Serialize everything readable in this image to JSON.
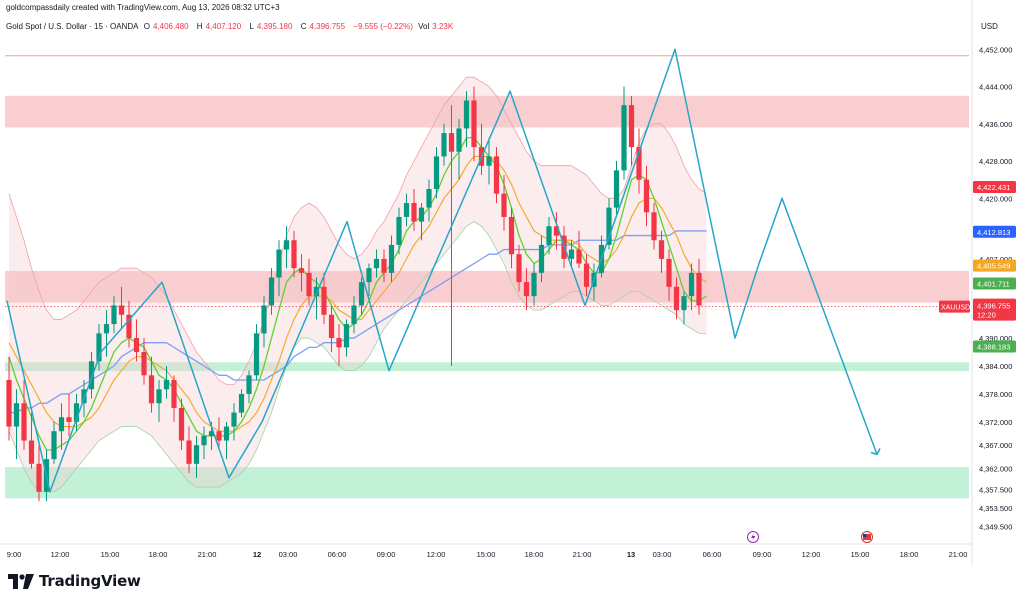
{
  "header": {
    "credit": "goldcompassdaily created with TradingView.com, Aug 13, 2026 08:32 UTC+3",
    "symbol": "Gold Spot / U.S. Dollar · 15 · OANDA",
    "o_label": "O",
    "o_value": "4,406.480",
    "h_label": "H",
    "h_value": "4,407.120",
    "l_label": "L",
    "l_value": "4,395.180",
    "c_label": "C",
    "c_value": "4,396.755",
    "change": "−9.555 (−0.22%)",
    "vol_label": "Vol",
    "vol_value": "3.23K"
  },
  "currency": "USD",
  "branding": {
    "logo_text": "TradingView"
  },
  "colors": {
    "up": "#089981",
    "down": "#f23645",
    "accent": "#2962ff",
    "projection": "#26a6c8",
    "ma_fast": "#5bd42c",
    "ma_mid": "#f5a623",
    "ma_slow": "#7e9ef2"
  },
  "chart_data": {
    "type": "candlestick",
    "y_range": [
      4346,
      4460
    ],
    "y_ticks": [
      "4,452.000",
      "4,444.000",
      "4,436.000",
      "4,428.000",
      "4,420.000",
      "4,407.000",
      "4,390.000",
      "4,384.000",
      "4,378.000",
      "4,372.000",
      "4,367.000",
      "4,362.000",
      "4,357.500",
      "4,353.500",
      "4,349.500"
    ],
    "y_tick_values": [
      4452,
      4444,
      4436,
      4428,
      4420,
      4407,
      4390,
      4384,
      4378,
      4372,
      4367,
      4362,
      4357.5,
      4353.5,
      4349.5
    ],
    "x_ticks": [
      "9:00",
      "12:00",
      "15:00",
      "18:00",
      "21:00",
      "12",
      "03:00",
      "06:00",
      "09:00",
      "12:00",
      "15:00",
      "18:00",
      "21:00",
      "13",
      "03:00",
      "06:00",
      "09:00",
      "12:00",
      "15:00",
      "18:00",
      "21:00"
    ],
    "bold_x_ticks": [
      "12",
      "13"
    ],
    "price_labels": [
      {
        "text": "4,422.431",
        "value": 4422.431,
        "color": "#f23645"
      },
      {
        "text": "4,412.813",
        "value": 4412.813,
        "color": "#2962ff"
      },
      {
        "text": "4,405.549",
        "value": 4405.549,
        "color": "#f5a623"
      },
      {
        "text": "4,401.711",
        "value": 4401.711,
        "color": "#4caf50"
      },
      {
        "text": "4,388.183",
        "value": 4388.183,
        "color": "#4caf50"
      }
    ],
    "current": {
      "symbol": "XAUUSD",
      "price": "4,396.755",
      "value": 4396.755,
      "countdown": "12:20"
    },
    "resistance_line": 4450.6,
    "zones": [
      {
        "kind": "resistance",
        "top": 4442,
        "bottom": 4435.2,
        "color": "#f8c5c8"
      },
      {
        "kind": "resistance",
        "top": 4404.4,
        "bottom": 4397.6,
        "color": "#f8c5c8"
      },
      {
        "kind": "support",
        "top": 4384.8,
        "bottom": 4382.9,
        "color": "#b9eed0"
      },
      {
        "kind": "support",
        "top": 4362.3,
        "bottom": 4355.6,
        "color": "#b9eed0"
      }
    ],
    "zigzag_pattern": [
      [
        0,
        4398
      ],
      [
        43,
        4357
      ],
      [
        94,
        4387
      ],
      [
        155,
        4402
      ],
      [
        222,
        4360
      ],
      [
        255,
        4372
      ],
      [
        340,
        4415
      ],
      [
        382,
        4383
      ],
      [
        503,
        4443
      ],
      [
        578,
        4397
      ],
      [
        668,
        4452
      ],
      [
        728,
        4390
      ],
      [
        752,
        4406
      ],
      [
        775,
        4420
      ],
      [
        870,
        4365
      ]
    ],
    "zigzag_projection_start_index": 12,
    "candles": [
      [
        4381,
        4386,
        4368,
        4371
      ],
      [
        4371,
        4379,
        4364,
        4376
      ],
      [
        4376,
        4381,
        4366,
        4368
      ],
      [
        4368,
        4374,
        4362,
        4363
      ],
      [
        4363,
        4367,
        4355,
        4357
      ],
      [
        4357,
        4366,
        4355,
        4364
      ],
      [
        4364,
        4372,
        4363,
        4370
      ],
      [
        4370,
        4376,
        4366,
        4373
      ],
      [
        4373,
        4378,
        4369,
        4372
      ],
      [
        4372,
        4378,
        4370,
        4376
      ],
      [
        4376,
        4381,
        4373,
        4379
      ],
      [
        4379,
        4387,
        4377,
        4385
      ],
      [
        4385,
        4393,
        4383,
        4391
      ],
      [
        4391,
        4396,
        4386,
        4393
      ],
      [
        4393,
        4399,
        4391,
        4397
      ],
      [
        4397,
        4401,
        4392,
        4395
      ],
      [
        4395,
        4398,
        4388,
        4390
      ],
      [
        4390,
        4394,
        4385,
        4387
      ],
      [
        4387,
        4390,
        4380,
        4382
      ],
      [
        4382,
        4386,
        4374,
        4376
      ],
      [
        4376,
        4381,
        4372,
        4379
      ],
      [
        4379,
        4384,
        4377,
        4381
      ],
      [
        4381,
        4382,
        4372,
        4375
      ],
      [
        4375,
        4377,
        4366,
        4368
      ],
      [
        4368,
        4371,
        4361,
        4363
      ],
      [
        4363,
        4369,
        4360,
        4367
      ],
      [
        4367,
        4371,
        4364,
        4369
      ],
      [
        4369,
        4372,
        4366,
        4370
      ],
      [
        4370,
        4373,
        4366,
        4368
      ],
      [
        4368,
        4372,
        4364,
        4371
      ],
      [
        4371,
        4376,
        4368,
        4374
      ],
      [
        4374,
        4379,
        4373,
        4378
      ],
      [
        4378,
        4383,
        4376,
        4382
      ],
      [
        4382,
        4393,
        4381,
        4391
      ],
      [
        4391,
        4399,
        4388,
        4397
      ],
      [
        4397,
        4405,
        4395,
        4403
      ],
      [
        4403,
        4411,
        4399,
        4409
      ],
      [
        4409,
        4414,
        4405,
        4411
      ],
      [
        4411,
        4413,
        4403,
        4405
      ],
      [
        4405,
        4408,
        4400,
        4404
      ],
      [
        4404,
        4407,
        4397,
        4399
      ],
      [
        4399,
        4403,
        4394,
        4401
      ],
      [
        4401,
        4404,
        4393,
        4395
      ],
      [
        4395,
        4397,
        4387,
        4390
      ],
      [
        4390,
        4393,
        4384,
        4388
      ],
      [
        4388,
        4394,
        4386,
        4393
      ],
      [
        4393,
        4399,
        4391,
        4397
      ],
      [
        4397,
        4403,
        4395,
        4402
      ],
      [
        4402,
        4406,
        4399,
        4405
      ],
      [
        4405,
        4409,
        4403,
        4407
      ],
      [
        4407,
        4409,
        4402,
        4404
      ],
      [
        4404,
        4412,
        4402,
        4410
      ],
      [
        4410,
        4418,
        4408,
        4416
      ],
      [
        4416,
        4421,
        4414,
        4419
      ],
      [
        4419,
        4422,
        4413,
        4415
      ],
      [
        4415,
        4419,
        4411,
        4418
      ],
      [
        4418,
        4424,
        4415,
        4422
      ],
      [
        4422,
        4431,
        4420,
        4429
      ],
      [
        4429,
        4436,
        4427,
        4434
      ],
      [
        4434,
        4440,
        4384,
        4430
      ],
      [
        4430,
        4437,
        4424,
        4435
      ],
      [
        4435,
        4443,
        4431,
        4441
      ],
      [
        4441,
        4444,
        4428,
        4431
      ],
      [
        4431,
        4436,
        4425,
        4427
      ],
      [
        4427,
        4433,
        4423,
        4429
      ],
      [
        4429,
        4431,
        4419,
        4421
      ],
      [
        4421,
        4425,
        4413,
        4416
      ],
      [
        4416,
        4418,
        4405,
        4408
      ],
      [
        4408,
        4410,
        4400,
        4402
      ],
      [
        4402,
        4405,
        4396,
        4399
      ],
      [
        4399,
        4406,
        4397,
        4404
      ],
      [
        4404,
        4412,
        4402,
        4410
      ],
      [
        4410,
        4416,
        4408,
        4414
      ],
      [
        4414,
        4417,
        4409,
        4412
      ],
      [
        4412,
        4414,
        4405,
        4407
      ],
      [
        4407,
        4411,
        4405,
        4409
      ],
      [
        4409,
        4413,
        4405,
        4406
      ],
      [
        4406,
        4408,
        4399,
        4401
      ],
      [
        4401,
        4406,
        4398,
        4404
      ],
      [
        4404,
        4412,
        4403,
        4410
      ],
      [
        4410,
        4420,
        4409,
        4418
      ],
      [
        4418,
        4428,
        4416,
        4426
      ],
      [
        4426,
        4444,
        4424,
        4440
      ],
      [
        4440,
        4442,
        4427,
        4431
      ],
      [
        4431,
        4435,
        4421,
        4424
      ],
      [
        4424,
        4427,
        4414,
        4417
      ],
      [
        4417,
        4419,
        4409,
        4411
      ],
      [
        4411,
        4413,
        4404,
        4407
      ],
      [
        4407,
        4409,
        4398,
        4401
      ],
      [
        4401,
        4403,
        4394,
        4396
      ],
      [
        4396,
        4400,
        4393,
        4399
      ],
      [
        4399,
        4406,
        4396,
        4404
      ],
      [
        4404,
        4407,
        4395,
        4397
      ]
    ],
    "ma_fast": [
      4386,
      4381,
      4377,
      4373,
      4369,
      4366,
      4366,
      4367,
      4368,
      4370,
      4372,
      4375,
      4379,
      4383,
      4387,
      4389,
      4390,
      4389,
      4388,
      4385,
      4382,
      4381,
      4379,
      4376,
      4373,
      4370,
      4369,
      4369,
      4369,
      4369,
      4370,
      4372,
      4375,
      4379,
      4384,
      4390,
      4396,
      4402,
      4404,
      4405,
      4403,
      4402,
      4400,
      4397,
      4394,
      4392,
      4393,
      4395,
      4398,
      4402,
      4404,
      4406,
      4409,
      4413,
      4415,
      4416,
      4418,
      4421,
      4425,
      4428,
      4430,
      4433,
      4433,
      4431,
      4429,
      4427,
      4423,
      4418,
      4412,
      4408,
      4406,
      4407,
      4409,
      4411,
      4411,
      4410,
      4409,
      4406,
      4404,
      4404,
      4407,
      4412,
      4418,
      4424,
      4425,
      4424,
      4420,
      4415,
      4410,
      4405,
      4400,
      4398,
      4398,
      4399
    ],
    "ma_mid": [
      4389,
      4386,
      4383,
      4380,
      4377,
      4374,
      4372,
      4371,
      4371,
      4371,
      4372,
      4373,
      4375,
      4378,
      4381,
      4383,
      4385,
      4386,
      4386,
      4385,
      4384,
      4383,
      4381,
      4379,
      4377,
      4374,
      4372,
      4371,
      4370,
      4370,
      4370,
      4371,
      4372,
      4374,
      4377,
      4381,
      4385,
      4390,
      4394,
      4397,
      4399,
      4399,
      4399,
      4398,
      4396,
      4395,
      4394,
      4394,
      4396,
      4398,
      4400,
      4402,
      4404,
      4407,
      4410,
      4412,
      4414,
      4417,
      4420,
      4422,
      4424,
      4427,
      4429,
      4429,
      4429,
      4428,
      4426,
      4423,
      4419,
      4416,
      4413,
      4412,
      4411,
      4411,
      4411,
      4411,
      4410,
      4408,
      4407,
      4406,
      4407,
      4409,
      4412,
      4416,
      4419,
      4420,
      4420,
      4418,
      4415,
      4412,
      4408,
      4405,
      4403,
      4402
    ],
    "ma_slow": [
      4374,
      4374,
      4375,
      4375,
      4376,
      4376,
      4377,
      4378,
      4378,
      4379,
      4380,
      4381,
      4382,
      4383,
      4384,
      4386,
      4387,
      4388,
      4389,
      4389,
      4389,
      4389,
      4388,
      4387,
      4386,
      4385,
      4384,
      4383,
      4382,
      4382,
      4381,
      4381,
      4381,
      4381,
      4381,
      4382,
      4383,
      4384,
      4386,
      4387,
      4388,
      4388,
      4389,
      4389,
      4389,
      4390,
      4390,
      4391,
      4392,
      4393,
      4394,
      4395,
      4396,
      4397,
      4398,
      4399,
      4400,
      4401,
      4402,
      4403,
      4404,
      4405,
      4406,
      4407,
      4408,
      4408,
      4409,
      4409,
      4409,
      4409,
      4409,
      4409,
      4410,
      4410,
      4410,
      4410,
      4411,
      4411,
      4411,
      4411,
      4411,
      4411,
      4412,
      4412,
      4412,
      4412,
      4412,
      4412,
      4412,
      4413,
      4413,
      4413,
      4413,
      4413
    ],
    "bb_upper": [
      4421,
      4416,
      4411,
      4405,
      4400,
      4396,
      4394,
      4394,
      4395,
      4396,
      4398,
      4400,
      4402,
      4403,
      4404,
      4405,
      4405,
      4405,
      4404,
      4403,
      4401,
      4399,
      4396,
      4393,
      4390,
      4387,
      4385,
      4383,
      4381,
      4380,
      4380,
      4382,
      4385,
      4389,
      4394,
      4400,
      4406,
      4412,
      4416,
      4418,
      4419,
      4418,
      4416,
      4413,
      4410,
      4408,
      4407,
      4408,
      4410,
      4413,
      4415,
      4418,
      4421,
      4425,
      4428,
      4431,
      4434,
      4437,
      4440,
      4442,
      4444,
      4446,
      4446,
      4445,
      4444,
      4442,
      4439,
      4436,
      4433,
      4430,
      4428,
      4427,
      4427,
      4427,
      4427,
      4427,
      4426,
      4425,
      4423,
      4421,
      4420,
      4420,
      4422,
      4427,
      4432,
      4435,
      4436,
      4436,
      4434,
      4431,
      4427,
      4424,
      4422,
      4421
    ],
    "bb_lower": [
      4370,
      4366,
      4362,
      4359,
      4357,
      4357,
      4357,
      4358,
      4360,
      4362,
      4364,
      4366,
      4368,
      4369,
      4370,
      4371,
      4371,
      4371,
      4370,
      4369,
      4367,
      4365,
      4363,
      4361,
      4359,
      4358,
      4358,
      4358,
      4358,
      4359,
      4360,
      4361,
      4363,
      4366,
      4370,
      4374,
      4379,
      4384,
      4388,
      4390,
      4390,
      4389,
      4388,
      4386,
      4384,
      4383,
      4383,
      4384,
      4386,
      4389,
      4392,
      4394,
      4396,
      4398,
      4400,
      4402,
      4404,
      4406,
      4408,
      4410,
      4412,
      4414,
      4415,
      4414,
      4412,
      4409,
      4406,
      4402,
      4399,
      4397,
      4396,
      4396,
      4397,
      4398,
      4399,
      4400,
      4400,
      4399,
      4398,
      4397,
      4397,
      4398,
      4399,
      4400,
      4400,
      4399,
      4398,
      4397,
      4396,
      4395,
      4393,
      4392,
      4391,
      4391
    ]
  }
}
